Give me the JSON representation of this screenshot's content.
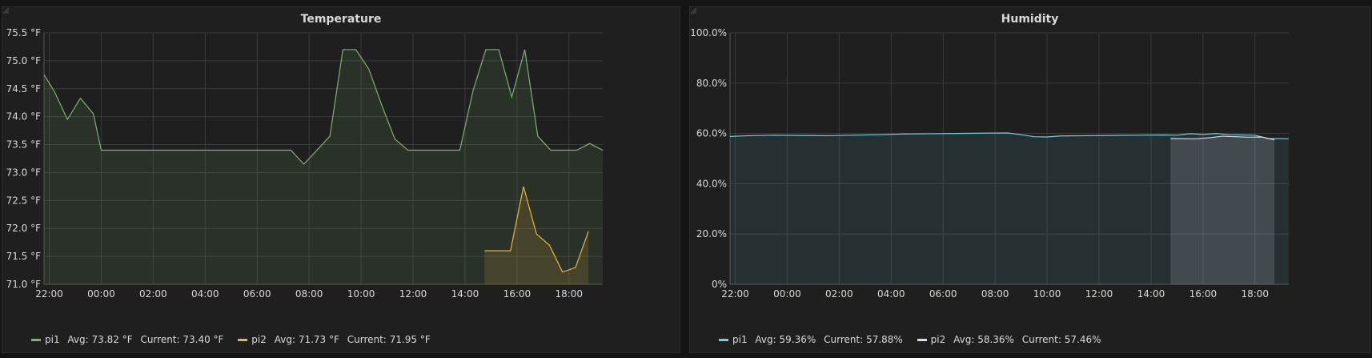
{
  "panels": [
    {
      "title": "Temperature",
      "legend": [
        {
          "name": "pi1",
          "avg_label": "Avg:",
          "avg": "73.82 °F",
          "current_label": "Current:",
          "current": "73.40 °F",
          "color": "#7eb26d"
        },
        {
          "name": "pi2",
          "avg_label": "Avg:",
          "avg": "71.73 °F",
          "current_label": "Current:",
          "current": "71.95 °F",
          "color": "#eab839"
        }
      ]
    },
    {
      "title": "Humidity",
      "legend": [
        {
          "name": "pi1",
          "avg_label": "Avg:",
          "avg": "59.36%",
          "current_label": "Current:",
          "current": "57.88%",
          "color": "#6ed0e0"
        },
        {
          "name": "pi2",
          "avg_label": "Avg:",
          "avg": "58.36%",
          "current_label": "Current:",
          "current": "57.46%",
          "color": "#e0d6f0"
        }
      ]
    }
  ],
  "chart_data": [
    {
      "type": "area",
      "title": "Temperature",
      "x_ticks": [
        "22:00",
        "00:00",
        "02:00",
        "04:00",
        "06:00",
        "08:00",
        "10:00",
        "12:00",
        "14:00",
        "16:00",
        "18:00"
      ],
      "x_tick_hours": [
        22,
        24,
        26,
        28,
        30,
        32,
        34,
        36,
        38,
        40,
        42
      ],
      "xlim": [
        21.8,
        43.3
      ],
      "y_ticks": [
        "71.0 °F",
        "71.5 °F",
        "72.0 °F",
        "72.5 °F",
        "73.0 °F",
        "73.5 °F",
        "74.0 °F",
        "74.5 °F",
        "75.0 °F",
        "75.5 °F"
      ],
      "y_tick_values": [
        71.0,
        71.5,
        72.0,
        72.5,
        73.0,
        73.5,
        74.0,
        74.5,
        75.0,
        75.5
      ],
      "ylim": [
        71.0,
        75.5
      ],
      "grid": true,
      "legend_position": "bottom-left",
      "series": [
        {
          "name": "pi1",
          "color": "#7eb26d",
          "fill": "rgba(126,178,109,0.12)",
          "points": [
            [
              21.8,
              74.75
            ],
            [
              22.2,
              74.45
            ],
            [
              22.7,
              73.95
            ],
            [
              23.2,
              74.33
            ],
            [
              23.7,
              74.05
            ],
            [
              24.0,
              73.4
            ],
            [
              25,
              73.4
            ],
            [
              26,
              73.4
            ],
            [
              27,
              73.4
            ],
            [
              28,
              73.4
            ],
            [
              29,
              73.4
            ],
            [
              30,
              73.4
            ],
            [
              31,
              73.4
            ],
            [
              31.3,
              73.4
            ],
            [
              31.8,
              73.15
            ],
            [
              32.3,
              73.4
            ],
            [
              32.8,
              73.65
            ],
            [
              33.3,
              75.2
            ],
            [
              33.8,
              75.2
            ],
            [
              34.3,
              74.85
            ],
            [
              34.8,
              74.2
            ],
            [
              35.3,
              73.6
            ],
            [
              35.8,
              73.4
            ],
            [
              36.5,
              73.4
            ],
            [
              37.2,
              73.4
            ],
            [
              37.8,
              73.4
            ],
            [
              38.3,
              74.45
            ],
            [
              38.8,
              75.2
            ],
            [
              39.3,
              75.2
            ],
            [
              39.8,
              74.35
            ],
            [
              40.3,
              75.2
            ],
            [
              40.8,
              73.65
            ],
            [
              41.3,
              73.4
            ],
            [
              41.8,
              73.4
            ],
            [
              42.3,
              73.4
            ],
            [
              42.8,
              73.52
            ],
            [
              43.3,
              73.4
            ]
          ]
        },
        {
          "name": "pi2",
          "color": "#eab839",
          "fill": "rgba(234,184,57,0.14)",
          "points": [
            [
              38.75,
              71.6
            ],
            [
              39.3,
              71.6
            ],
            [
              39.75,
              71.6
            ],
            [
              40.25,
              72.75
            ],
            [
              40.75,
              71.9
            ],
            [
              41.25,
              71.7
            ],
            [
              41.75,
              71.22
            ],
            [
              42.25,
              71.3
            ],
            [
              42.75,
              71.95
            ]
          ]
        }
      ]
    },
    {
      "type": "area",
      "title": "Humidity",
      "x_ticks": [
        "22:00",
        "00:00",
        "02:00",
        "04:00",
        "06:00",
        "08:00",
        "10:00",
        "12:00",
        "14:00",
        "16:00",
        "18:00"
      ],
      "x_tick_hours": [
        22,
        24,
        26,
        28,
        30,
        32,
        34,
        36,
        38,
        40,
        42
      ],
      "xlim": [
        21.8,
        43.3
      ],
      "y_ticks": [
        "0%",
        "20.0%",
        "40.0%",
        "60.0%",
        "80.0%",
        "100.0%"
      ],
      "y_tick_values": [
        0,
        20,
        40,
        60,
        80,
        100
      ],
      "ylim": [
        0,
        100
      ],
      "grid": true,
      "legend_position": "bottom-left",
      "series": [
        {
          "name": "pi1",
          "color": "#6ed0e0",
          "fill": "rgba(110,208,224,0.10)",
          "points": [
            [
              21.8,
              58.8
            ],
            [
              22.5,
              59.1
            ],
            [
              23.5,
              59.3
            ],
            [
              24.5,
              59.2
            ],
            [
              25.5,
              59.1
            ],
            [
              26.5,
              59.3
            ],
            [
              27.5,
              59.5
            ],
            [
              28.5,
              59.8
            ],
            [
              29.5,
              59.9
            ],
            [
              30.5,
              60.0
            ],
            [
              31.5,
              60.1
            ],
            [
              32.5,
              60.2
            ],
            [
              33,
              59.5
            ],
            [
              33.5,
              58.7
            ],
            [
              34,
              58.6
            ],
            [
              34.5,
              59.0
            ],
            [
              35.5,
              59.1
            ],
            [
              36.5,
              59.2
            ],
            [
              37.5,
              59.3
            ],
            [
              38.5,
              59.4
            ],
            [
              39,
              59.3
            ],
            [
              39.5,
              59.9
            ],
            [
              40,
              59.6
            ],
            [
              40.5,
              60.0
            ],
            [
              41,
              59.5
            ],
            [
              41.5,
              59.4
            ],
            [
              42,
              59.3
            ],
            [
              42.5,
              58.0
            ],
            [
              43.3,
              57.9
            ]
          ]
        },
        {
          "name": "pi2",
          "color": "#e0d6f0",
          "fill": "rgba(230,230,240,0.15)",
          "points": [
            [
              38.75,
              58.0
            ],
            [
              39.3,
              57.9
            ],
            [
              39.75,
              57.9
            ],
            [
              40.25,
              58.3
            ],
            [
              40.75,
              58.9
            ],
            [
              41.25,
              58.7
            ],
            [
              41.75,
              58.5
            ],
            [
              42.25,
              58.6
            ],
            [
              42.75,
              57.46
            ]
          ]
        }
      ]
    }
  ]
}
